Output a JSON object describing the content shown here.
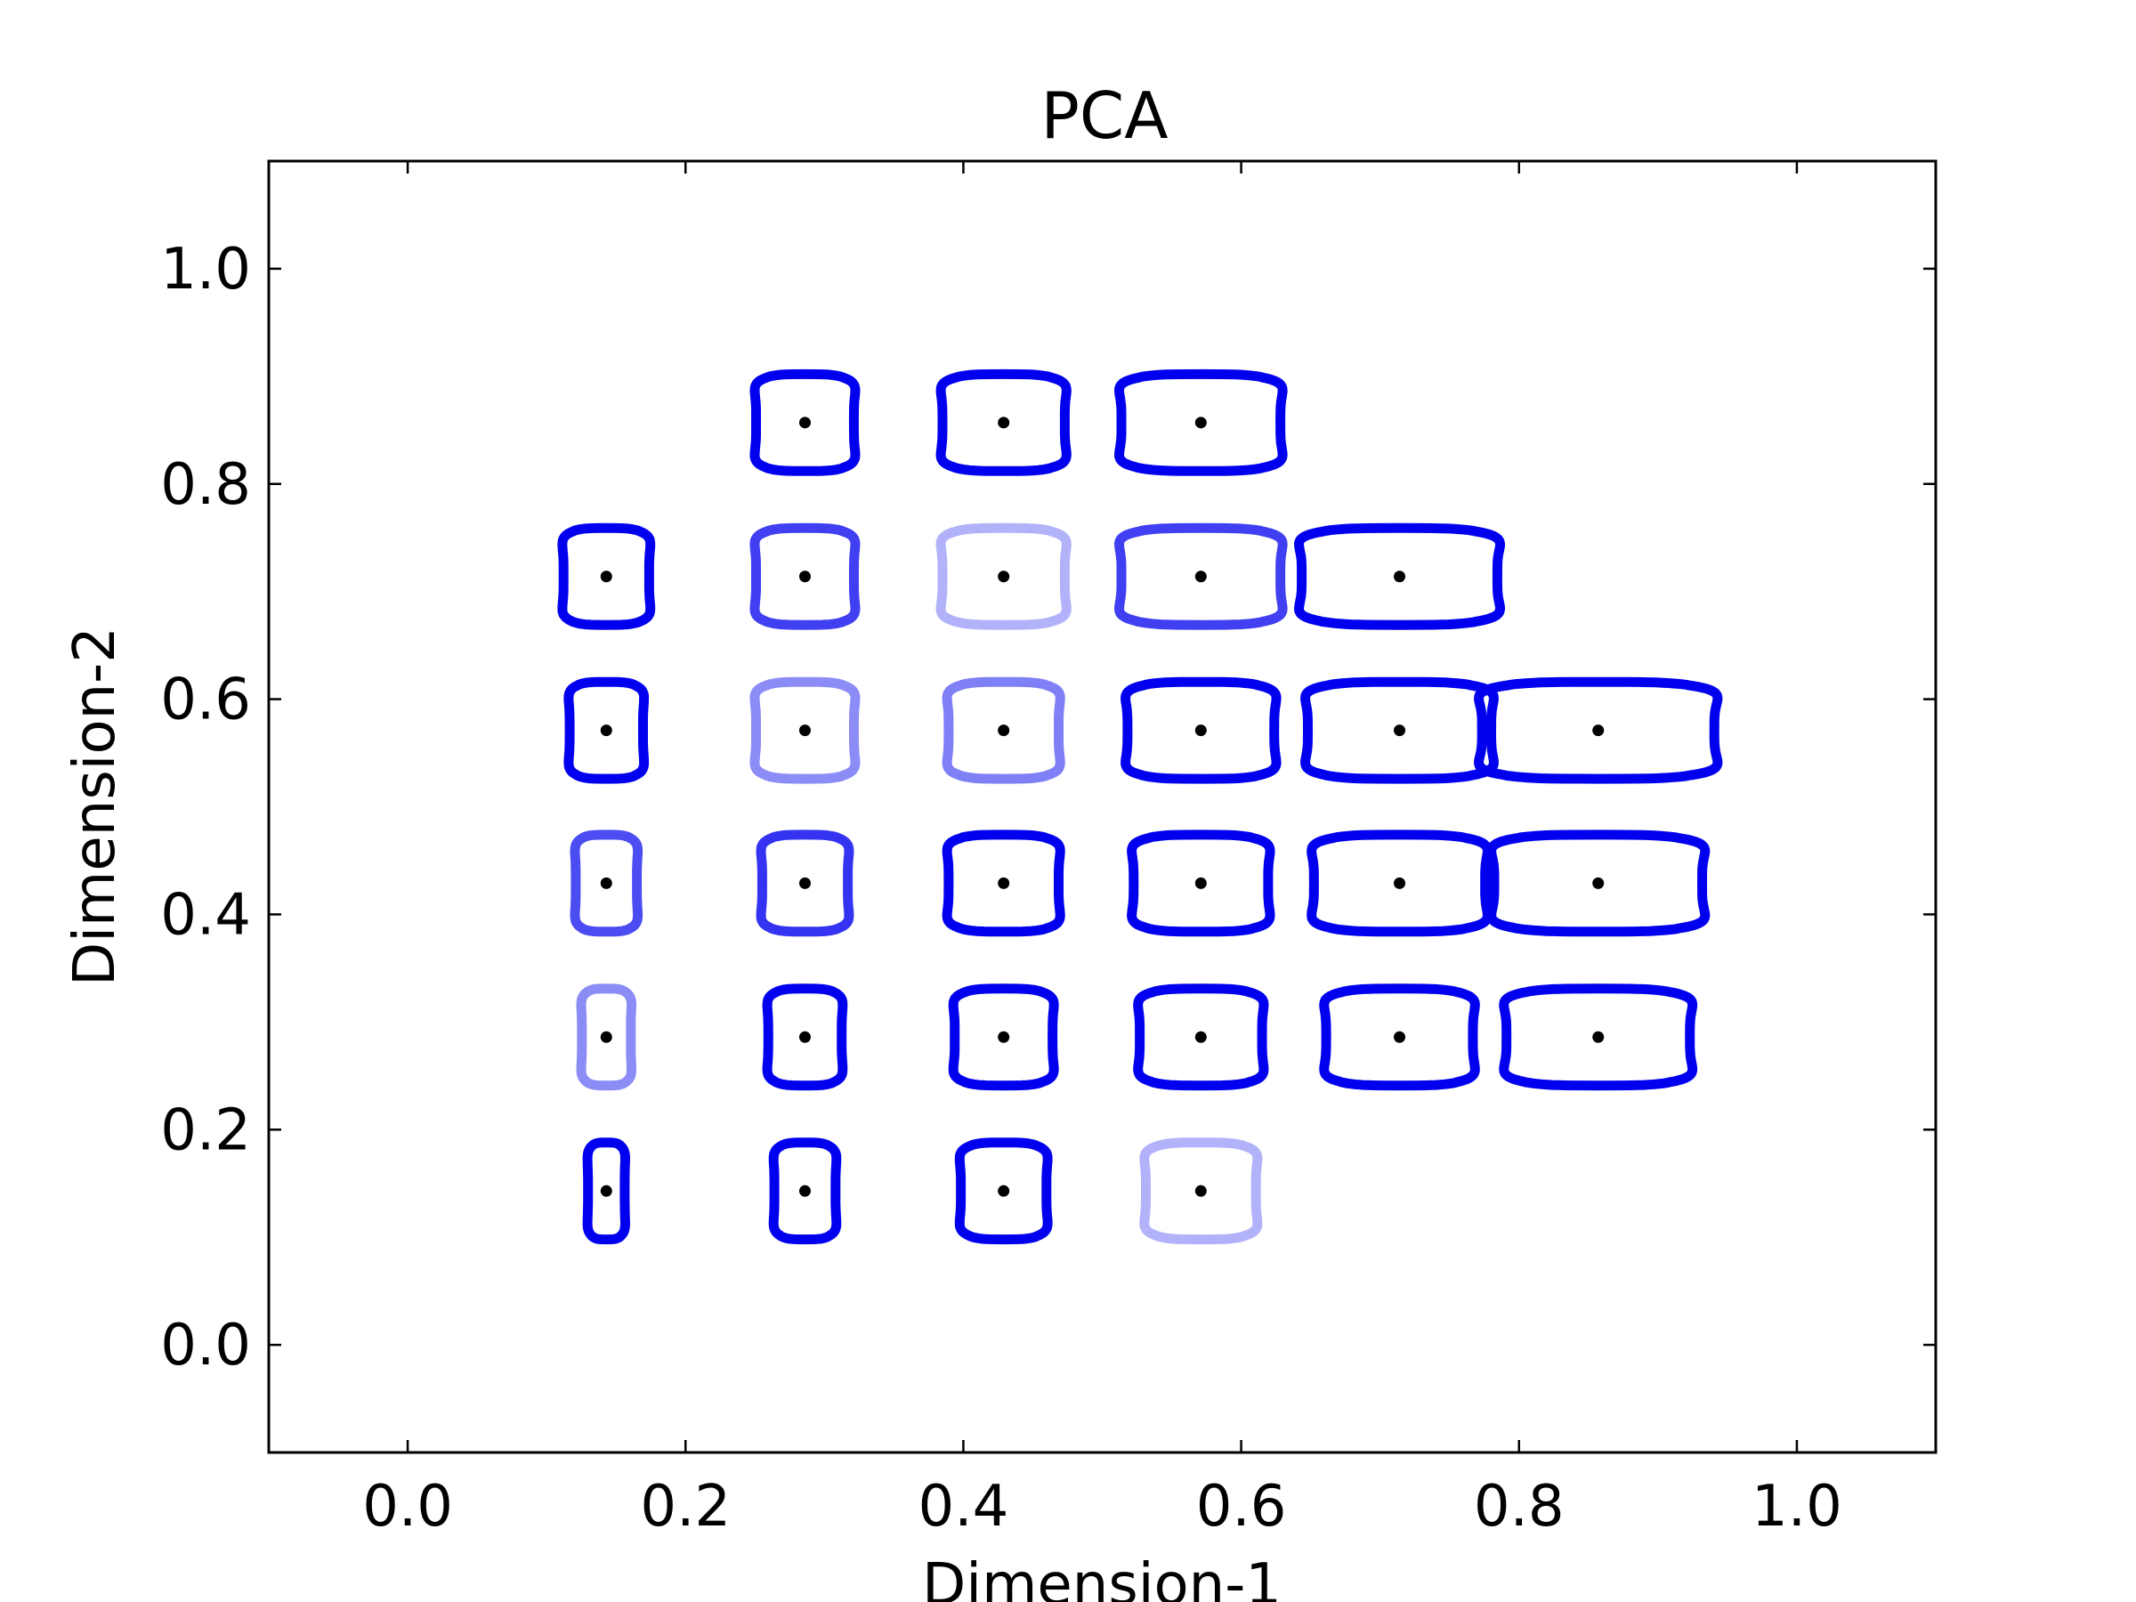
{
  "chart_data": {
    "type": "scatter",
    "title": "PCA",
    "xlabel": "Dimension-1",
    "ylabel": "Dimension-2",
    "xlim": [
      -0.1,
      1.1
    ],
    "ylim": [
      -0.1,
      1.1
    ],
    "x_ticks": [
      "0.0",
      "0.2",
      "0.4",
      "0.6",
      "0.8",
      "1.0"
    ],
    "y_ticks": [
      "0.0",
      "0.2",
      "0.4",
      "0.6",
      "0.8",
      "1.0"
    ],
    "grid": false,
    "marker": "contour glyph with center point",
    "colors": {
      "glyph_stroke": "#0000ee",
      "center_point": "#000000"
    },
    "points": [
      {
        "x": 0.143,
        "y": 0.857,
        "shape": [
          0.05,
          0.05
        ],
        "opacity": 1.0,
        "present": false
      },
      {
        "x": 0.286,
        "y": 0.857,
        "shape": [
          0.04,
          0.045
        ],
        "opacity": 1.0
      },
      {
        "x": 0.429,
        "y": 0.857,
        "shape": [
          0.05,
          0.045
        ],
        "opacity": 1.0
      },
      {
        "x": 0.571,
        "y": 0.857,
        "shape": [
          0.065,
          0.045
        ],
        "opacity": 1.0
      },
      {
        "x": 0.143,
        "y": 0.714,
        "shape": [
          0.035,
          0.045
        ],
        "opacity": 1.0
      },
      {
        "x": 0.286,
        "y": 0.714,
        "shape": [
          0.04,
          0.045
        ],
        "opacity": 0.75
      },
      {
        "x": 0.429,
        "y": 0.714,
        "shape": [
          0.05,
          0.045
        ],
        "opacity": 0.3
      },
      {
        "x": 0.571,
        "y": 0.714,
        "shape": [
          0.065,
          0.045
        ],
        "opacity": 0.75
      },
      {
        "x": 0.714,
        "y": 0.714,
        "shape": [
          0.08,
          0.045
        ],
        "opacity": 1.0
      },
      {
        "x": 0.143,
        "y": 0.571,
        "shape": [
          0.03,
          0.045
        ],
        "opacity": 1.0
      },
      {
        "x": 0.286,
        "y": 0.571,
        "shape": [
          0.04,
          0.045
        ],
        "opacity": 0.45
      },
      {
        "x": 0.429,
        "y": 0.571,
        "shape": [
          0.045,
          0.045
        ],
        "opacity": 0.5
      },
      {
        "x": 0.571,
        "y": 0.571,
        "shape": [
          0.06,
          0.045
        ],
        "opacity": 1.0
      },
      {
        "x": 0.714,
        "y": 0.571,
        "shape": [
          0.075,
          0.045
        ],
        "opacity": 1.0
      },
      {
        "x": 0.857,
        "y": 0.571,
        "shape": [
          0.095,
          0.045
        ],
        "opacity": 1.0
      },
      {
        "x": 0.143,
        "y": 0.429,
        "shape": [
          0.025,
          0.045
        ],
        "opacity": 0.7
      },
      {
        "x": 0.286,
        "y": 0.429,
        "shape": [
          0.035,
          0.045
        ],
        "opacity": 0.8
      },
      {
        "x": 0.429,
        "y": 0.429,
        "shape": [
          0.045,
          0.045
        ],
        "opacity": 1.0
      },
      {
        "x": 0.571,
        "y": 0.429,
        "shape": [
          0.055,
          0.045
        ],
        "opacity": 1.0
      },
      {
        "x": 0.714,
        "y": 0.429,
        "shape": [
          0.07,
          0.045
        ],
        "opacity": 1.0
      },
      {
        "x": 0.857,
        "y": 0.429,
        "shape": [
          0.085,
          0.045
        ],
        "opacity": 1.0
      },
      {
        "x": 0.143,
        "y": 0.286,
        "shape": [
          0.02,
          0.045
        ],
        "opacity": 0.45
      },
      {
        "x": 0.286,
        "y": 0.286,
        "shape": [
          0.03,
          0.045
        ],
        "opacity": 1.0
      },
      {
        "x": 0.429,
        "y": 0.286,
        "shape": [
          0.04,
          0.045
        ],
        "opacity": 1.0
      },
      {
        "x": 0.571,
        "y": 0.286,
        "shape": [
          0.05,
          0.045
        ],
        "opacity": 1.0
      },
      {
        "x": 0.714,
        "y": 0.286,
        "shape": [
          0.06,
          0.045
        ],
        "opacity": 1.0
      },
      {
        "x": 0.857,
        "y": 0.286,
        "shape": [
          0.075,
          0.045
        ],
        "opacity": 1.0
      },
      {
        "x": 0.143,
        "y": 0.143,
        "shape": [
          0.015,
          0.045
        ],
        "opacity": 1.0
      },
      {
        "x": 0.286,
        "y": 0.143,
        "shape": [
          0.025,
          0.045
        ],
        "opacity": 1.0
      },
      {
        "x": 0.429,
        "y": 0.143,
        "shape": [
          0.035,
          0.045
        ],
        "opacity": 1.0
      },
      {
        "x": 0.571,
        "y": 0.143,
        "shape": [
          0.045,
          0.045
        ],
        "opacity": 0.3
      }
    ]
  }
}
